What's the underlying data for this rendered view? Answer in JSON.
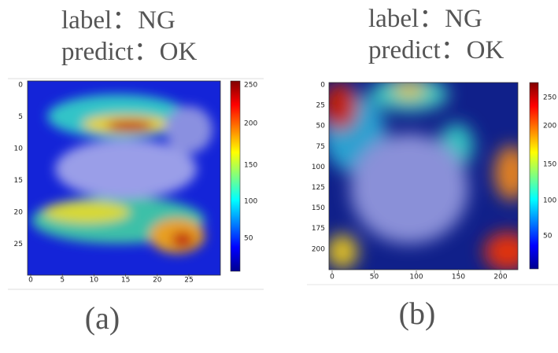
{
  "panels": [
    {
      "label": "label：NG",
      "predict": "predict：OK",
      "xticks": [
        "0",
        "5",
        "10",
        "15",
        "20",
        "25"
      ],
      "yticks": [
        "0",
        "5",
        "10",
        "15",
        "20",
        "25"
      ],
      "colorbar_ticks": [
        "250",
        "200",
        "150",
        "100",
        "50"
      ],
      "caption": "(a)"
    },
    {
      "label": "label：NG",
      "predict": "predict：OK",
      "xticks": [
        "0",
        "50",
        "100",
        "150",
        "200"
      ],
      "yticks": [
        "0",
        "25",
        "50",
        "75",
        "100",
        "125",
        "150",
        "175",
        "200"
      ],
      "colorbar_ticks": [
        "250",
        "200",
        "150",
        "100",
        "50"
      ],
      "caption": "(b)"
    }
  ]
}
